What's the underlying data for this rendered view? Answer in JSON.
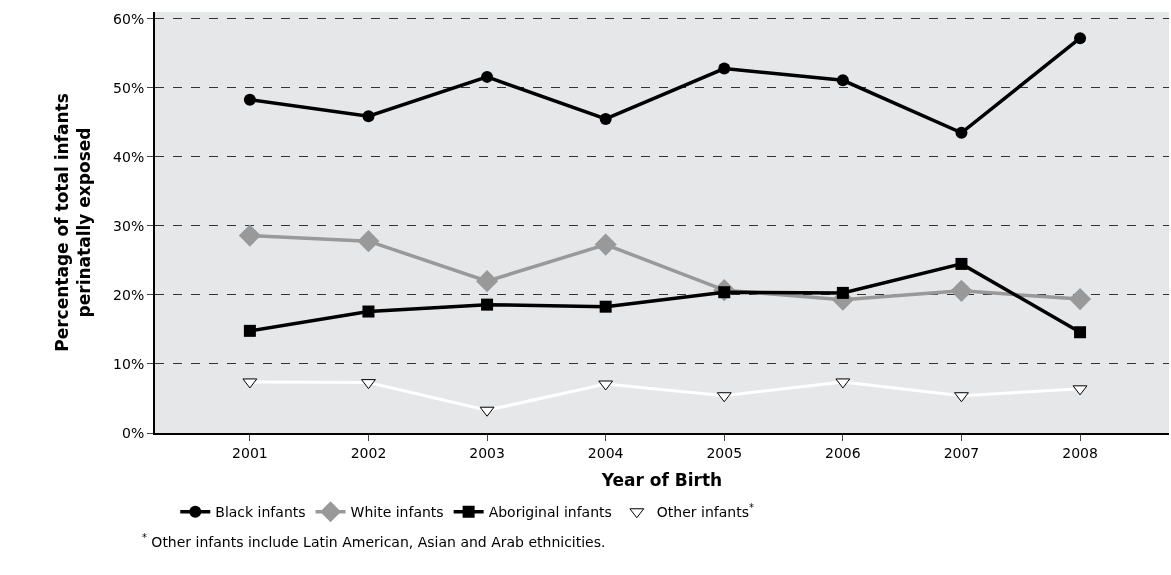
{
  "chart_data": {
    "type": "line",
    "xlabel": "Year of Birth",
    "ylabel": "Percentage of total infants\nperinatally exposed",
    "x": [
      2001,
      2002,
      2003,
      2004,
      2005,
      2006,
      2007,
      2008
    ],
    "xlim": [
      2000.2,
      2008.75
    ],
    "xticks": [
      2001,
      2002,
      2003,
      2004,
      2005,
      2006,
      2007,
      2008
    ],
    "ylim": [
      0,
      61
    ],
    "yticks": [
      {
        "value": 0,
        "label": "0%"
      },
      {
        "value": 10,
        "label": "10%"
      },
      {
        "value": 20,
        "label": "20%"
      },
      {
        "value": 30,
        "label": "30%"
      },
      {
        "value": 40,
        "label": "40%"
      },
      {
        "value": 50,
        "label": "50%"
      },
      {
        "value": 60,
        "label": "60%"
      }
    ],
    "grid": "y",
    "legend": "bottom",
    "line_style": "solid",
    "series": [
      {
        "name": "Black infants",
        "color": "#000000",
        "marker": "circle",
        "values": [
          48.3,
          45.9,
          51.6,
          45.5,
          52.8,
          51.1,
          43.5,
          57.2
        ]
      },
      {
        "name": "White infants",
        "color": "#999999",
        "marker": "diamond",
        "values": [
          28.6,
          27.8,
          22.0,
          27.3,
          20.7,
          19.3,
          20.6,
          19.4
        ]
      },
      {
        "name": "Aboriginal infants",
        "color": "#000000",
        "marker": "square",
        "values": [
          14.8,
          17.6,
          18.6,
          18.3,
          20.4,
          20.3,
          24.5,
          14.6
        ]
      },
      {
        "name": "Other infants$^{*}$",
        "color": "#ffffff",
        "marker": "triangle-down",
        "values": [
          7.4,
          7.3,
          3.3,
          7.1,
          5.4,
          7.4,
          5.4,
          6.4
        ]
      }
    ],
    "annotations": [
      "$^{*}$ Other infants include Latin American, Asian and Arab ethnicities."
    ]
  }
}
